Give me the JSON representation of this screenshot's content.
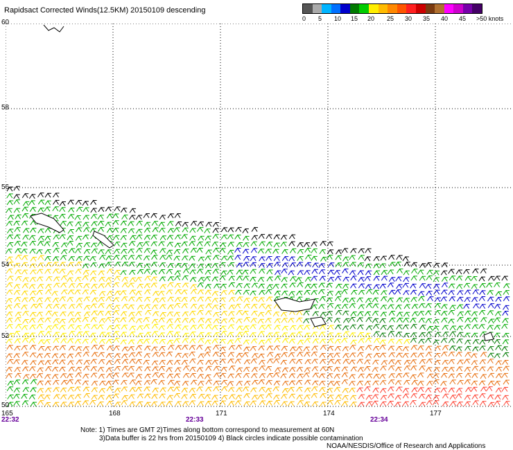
{
  "title": "Rapidsact Corrected Winds(12.5KM) 20150109 descending",
  "colorbar": {
    "colors": [
      "#555555",
      "#aaaaaa",
      "#00b4ff",
      "#0070ff",
      "#0000cc",
      "#007a00",
      "#00cc00",
      "#ffee00",
      "#ffbb00",
      "#ff8800",
      "#ff5500",
      "#ff2020",
      "#cc0000",
      "#7a3a10",
      "#b07030",
      "#ff00ff",
      "#cc00cc",
      "#7700aa",
      "#440066"
    ],
    "labels": [
      "0",
      "5",
      "10",
      "15",
      "20",
      "25",
      "30",
      "35",
      "40",
      "45",
      ">50 knots"
    ]
  },
  "map": {
    "lat_labels": [
      "60",
      "58",
      "56",
      "54",
      "52",
      "50"
    ],
    "lon_labels": [
      "165",
      "168",
      "171",
      "174",
      "177"
    ],
    "time_labels": [
      "22:32",
      "22:33",
      "22:34"
    ]
  },
  "notes": [
    "Note: 1) Times are GMT 2)Times along bottom correspond to measurement at 60N",
    "3)Data buffer is 22 hrs from 20150109 4) Black circles indicate possible contamination",
    "NOAA/NESDIS/Office of Research and Applications"
  ]
}
